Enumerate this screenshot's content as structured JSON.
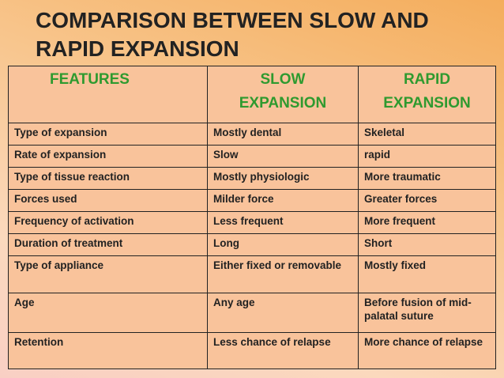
{
  "title_lines": [
    "COMPARISON BETWEEN SLOW AND",
    "RAPID EXPANSION"
  ],
  "table": {
    "header": [
      "FEATURES",
      "SLOW EXPANSION",
      "RAPID EXPANSION"
    ],
    "rows": [
      [
        "Type of expansion",
        "Mostly dental",
        "Skeletal"
      ],
      [
        "Rate of expansion",
        "Slow",
        "rapid"
      ],
      [
        "Type of tissue reaction",
        "Mostly physiologic",
        "More traumatic"
      ],
      [
        "Forces used",
        "Milder force",
        "Greater forces"
      ],
      [
        "Frequency of activation",
        "Less frequent",
        "More frequent"
      ],
      [
        "Duration of treatment",
        "Long",
        "Short"
      ],
      [
        "Type of appliance",
        "Either fixed or removable",
        "Mostly fixed"
      ],
      [
        "Age",
        "Any age",
        "Before fusion of mid-palatal suture"
      ],
      [
        "Retention",
        "Less chance of relapse",
        "More chance of relapse"
      ]
    ]
  }
}
